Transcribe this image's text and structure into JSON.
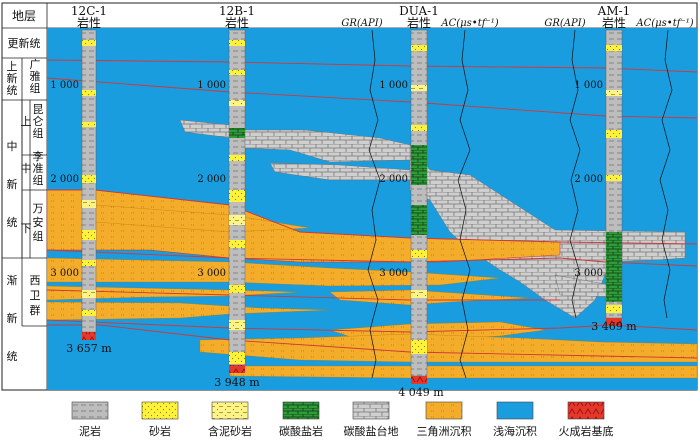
{
  "header": {
    "strata_col": "地层",
    "wells": [
      {
        "name": "12C-1",
        "litho": "岩性",
        "depth_td": "3 657 m"
      },
      {
        "name": "12B-1",
        "litho": "岩性",
        "depth_td": "3 948 m"
      },
      {
        "name": "DUA-1",
        "litho": "岩性",
        "depth_td": "4 049 m",
        "gr": "GR(API)",
        "ac": "AC(μs•tf⁻¹)"
      },
      {
        "name": "AM-1",
        "litho": "岩性",
        "depth_td": "3 469 m",
        "gr": "GR(API)",
        "ac": "AC(μs•tf⁻¹)"
      }
    ]
  },
  "strata": {
    "holocene": "更新统",
    "upper_miocene": [
      "上",
      "新",
      "统"
    ],
    "guangya": [
      "广",
      "雅",
      "组"
    ],
    "kunlun_shang": "上",
    "kunlun": [
      "昆",
      "仑",
      "组"
    ],
    "zhong": "中",
    "zhong_xin_tong": [
      "中",
      "新",
      "统"
    ],
    "lizhun": [
      "李",
      "准",
      "组"
    ],
    "xia": "下",
    "wanan": [
      "万",
      "安",
      "组"
    ],
    "jian_xin_tong": [
      "渐",
      "新",
      "统"
    ],
    "xiwei": [
      "西",
      "卫",
      "群"
    ]
  },
  "depth_labels": [
    "1 000",
    "2 000",
    "3 000"
  ],
  "legend": [
    {
      "label": "泥岩",
      "pattern": "mudstone"
    },
    {
      "label": "砂岩",
      "pattern": "sandstone"
    },
    {
      "label": "含泥砂岩",
      "pattern": "muddy-sandstone"
    },
    {
      "label": "碳酸盐岩",
      "pattern": "carbonate"
    },
    {
      "label": "碳酸盐台地",
      "pattern": "platform"
    },
    {
      "label": "三角洲沉积",
      "pattern": "delta"
    },
    {
      "label": "浅海沉积",
      "pattern": "shallow-marine"
    },
    {
      "label": "火成岩基底",
      "pattern": "igneous"
    }
  ],
  "colors": {
    "shallow_marine": "#1a9ddf",
    "delta": "#f4ad2a",
    "platform": "#c9c9c9",
    "sandstone": "#ffee33",
    "mudstone": "#b9b9b9",
    "carbonate": "#2f9b3a",
    "igneous": "#e5372a",
    "boundary": "#d03838"
  }
}
